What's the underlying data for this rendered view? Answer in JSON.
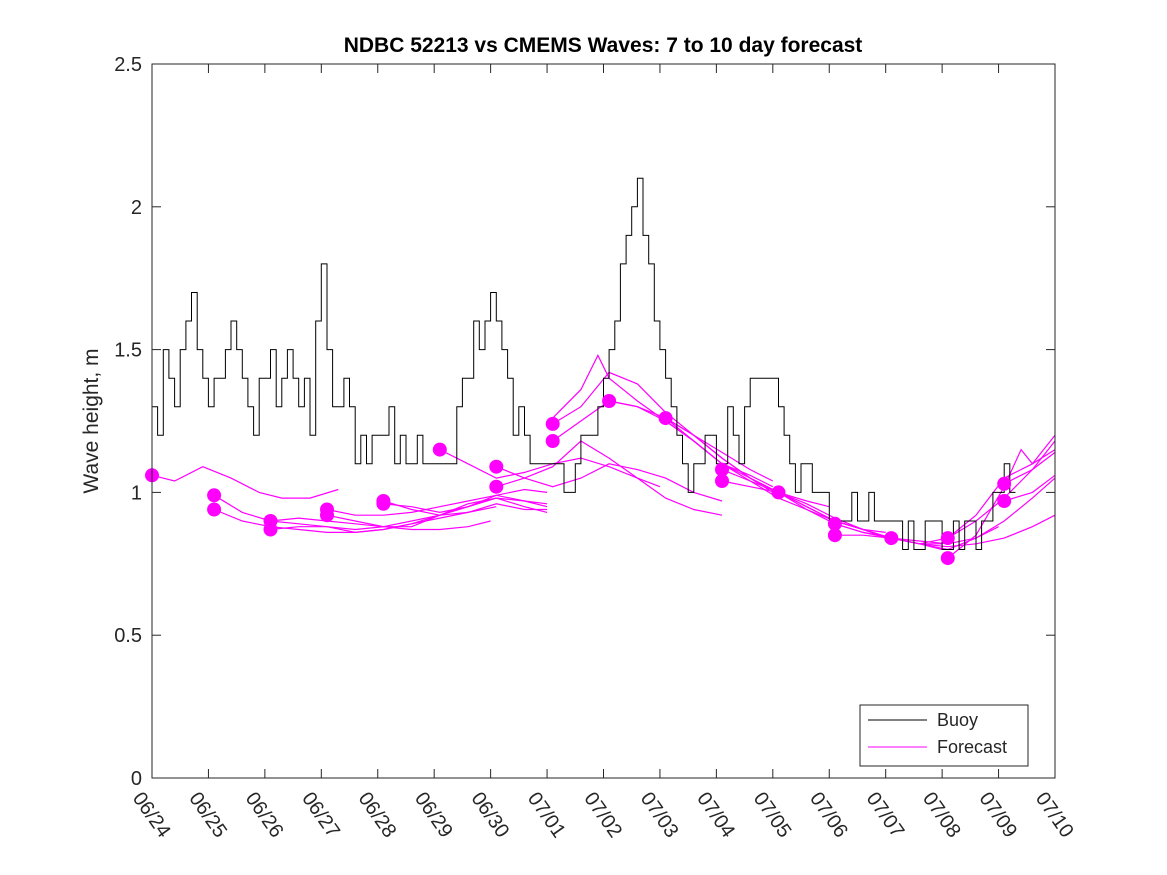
{
  "chart_data": {
    "type": "line",
    "title": "NDBC 52213 vs CMEMS Waves: 7 to 10 day forecast",
    "xlabel": "",
    "ylabel": "Wave height, m",
    "ylim": [
      0,
      2.5
    ],
    "xlim_days": [
      0,
      16
    ],
    "yticks": [
      0,
      0.5,
      1,
      1.5,
      2,
      2.5
    ],
    "ytick_labels": [
      "0",
      "0.5",
      "1",
      "1.5",
      "2",
      "2.5"
    ],
    "xtick_labels": [
      "06/24",
      "06/25",
      "06/26",
      "06/27",
      "06/28",
      "06/29",
      "06/30",
      "07/01",
      "07/02",
      "07/03",
      "07/04",
      "07/05",
      "07/06",
      "07/07",
      "07/08",
      "07/09",
      "07/10"
    ],
    "grid": false,
    "legend_position": "bottom-right",
    "colors": {
      "buoy": "#000000",
      "forecast": "#ff00ff"
    },
    "legend": [
      {
        "label": "Buoy",
        "color": "#000000"
      },
      {
        "label": "Forecast",
        "color": "#ff00ff"
      }
    ],
    "buoy": {
      "name": "Buoy",
      "x": [
        0,
        0.1,
        0.2,
        0.3,
        0.4,
        0.5,
        0.6,
        0.7,
        0.8,
        0.9,
        1.0,
        1.1,
        1.2,
        1.3,
        1.4,
        1.5,
        1.6,
        1.7,
        1.8,
        1.9,
        2.0,
        2.1,
        2.2,
        2.3,
        2.4,
        2.5,
        2.6,
        2.7,
        2.8,
        2.9,
        3.0,
        3.1,
        3.2,
        3.3,
        3.4,
        3.5,
        3.6,
        3.7,
        3.8,
        3.9,
        4.0,
        4.1,
        4.2,
        4.3,
        4.4,
        4.5,
        4.6,
        4.7,
        4.8,
        4.9,
        5.0,
        5.1,
        5.2,
        5.3,
        5.4,
        5.5,
        5.6,
        5.7,
        5.8,
        5.9,
        6.0,
        6.1,
        6.2,
        6.3,
        6.4,
        6.5,
        6.6,
        6.7,
        6.8,
        6.9,
        7.0,
        7.1,
        7.2,
        7.3,
        7.4,
        7.5,
        7.6,
        7.7,
        7.8,
        7.9,
        8.0,
        8.1,
        8.2,
        8.3,
        8.4,
        8.5,
        8.6,
        8.7,
        8.8,
        8.9,
        9.0,
        9.1,
        9.2,
        9.3,
        9.4,
        9.5,
        9.6,
        9.7,
        9.8,
        9.9,
        10.0,
        10.1,
        10.2,
        10.3,
        10.4,
        10.5,
        10.6,
        10.7,
        10.8,
        10.9,
        11.0,
        11.1,
        11.2,
        11.3,
        11.4,
        11.5,
        11.6,
        11.7,
        11.8,
        11.9,
        12.0,
        12.1,
        12.2,
        12.3,
        12.4,
        12.5,
        12.6,
        12.7,
        12.8,
        12.9,
        13.0,
        13.1,
        13.2,
        13.3,
        13.4,
        13.5,
        13.6,
        13.7,
        13.8,
        13.9,
        14.0,
        14.1,
        14.2,
        14.3,
        14.4,
        14.5,
        14.6,
        14.7,
        14.8,
        14.9,
        15.0,
        15.1,
        15.2,
        15.3
      ],
      "y": [
        1.3,
        1.2,
        1.5,
        1.4,
        1.3,
        1.5,
        1.6,
        1.7,
        1.5,
        1.4,
        1.3,
        1.4,
        1.4,
        1.5,
        1.6,
        1.5,
        1.4,
        1.3,
        1.2,
        1.4,
        1.4,
        1.5,
        1.3,
        1.4,
        1.5,
        1.4,
        1.3,
        1.4,
        1.2,
        1.6,
        1.8,
        1.5,
        1.3,
        1.3,
        1.4,
        1.3,
        1.1,
        1.2,
        1.1,
        1.2,
        1.2,
        1.2,
        1.3,
        1.1,
        1.2,
        1.1,
        1.1,
        1.2,
        1.1,
        1.1,
        1.1,
        1.1,
        1.1,
        1.1,
        1.3,
        1.4,
        1.4,
        1.6,
        1.5,
        1.6,
        1.7,
        1.6,
        1.5,
        1.4,
        1.2,
        1.3,
        1.2,
        1.1,
        1.1,
        1.1,
        1.1,
        1.1,
        1.1,
        1.0,
        1.0,
        1.1,
        1.2,
        1.2,
        1.2,
        1.3,
        1.4,
        1.5,
        1.6,
        1.8,
        1.9,
        2.0,
        2.1,
        1.9,
        1.8,
        1.6,
        1.5,
        1.4,
        1.3,
        1.2,
        1.1,
        1.0,
        1.1,
        1.1,
        1.2,
        1.2,
        1.1,
        1.1,
        1.3,
        1.2,
        1.1,
        1.3,
        1.4,
        1.4,
        1.4,
        1.4,
        1.4,
        1.3,
        1.2,
        1.1,
        1.0,
        1.1,
        1.1,
        1.0,
        1.0,
        1.0,
        0.9,
        0.9,
        0.9,
        0.9,
        1.0,
        0.9,
        0.9,
        1.0,
        0.9,
        0.9,
        0.9,
        0.9,
        0.9,
        0.8,
        0.9,
        0.8,
        0.8,
        0.9,
        0.9,
        0.9,
        0.8,
        0.8,
        0.9,
        0.8,
        0.9,
        0.9,
        0.8,
        0.9,
        0.9,
        1.0,
        1.0,
        1.1,
        1.0,
        1.0
      ]
    },
    "forecast_series": [
      {
        "x": [
          0,
          0.4,
          0.9,
          1.4,
          1.9,
          2.3,
          2.8,
          3.3
        ],
        "y": [
          1.06,
          1.04,
          1.09,
          1.05,
          1.0,
          0.98,
          0.98,
          1.01
        ]
      },
      {
        "x": [
          1.1,
          1.6,
          2.1,
          2.6,
          3.1,
          3.6,
          4.1,
          4.6,
          5.1,
          5.6,
          6.1
        ],
        "y": [
          0.99,
          0.93,
          0.9,
          0.89,
          0.88,
          0.87,
          0.88,
          0.9,
          0.92,
          0.95,
          0.98
        ]
      },
      {
        "x": [
          1.1,
          1.6,
          2.1,
          2.6,
          3.1,
          3.6,
          4.1,
          4.6,
          5.1,
          5.6,
          6.1,
          6.6,
          7.0
        ],
        "y": [
          0.94,
          0.9,
          0.88,
          0.87,
          0.86,
          0.86,
          0.87,
          0.89,
          0.92,
          0.95,
          0.98,
          0.97,
          0.96
        ]
      },
      {
        "x": [
          2.1,
          2.6,
          3.1,
          3.6,
          4.1,
          4.6,
          5.1,
          5.6,
          6.1,
          6.6,
          7.0
        ],
        "y": [
          0.9,
          0.91,
          0.9,
          0.89,
          0.88,
          0.88,
          0.92,
          0.96,
          0.98,
          0.95,
          0.93
        ]
      },
      {
        "x": [
          2.1,
          2.6,
          3.1,
          3.6,
          4.1,
          4.6,
          5.1,
          5.6,
          6.1
        ],
        "y": [
          0.87,
          0.88,
          0.88,
          0.86,
          0.87,
          0.89,
          0.91,
          0.93,
          0.95
        ]
      },
      {
        "x": [
          3.1,
          3.6,
          4.1,
          4.6,
          5.1,
          5.6,
          6.1,
          6.6,
          7.0
        ],
        "y": [
          0.94,
          0.92,
          0.92,
          0.93,
          0.95,
          0.97,
          0.99,
          0.97,
          0.95
        ]
      },
      {
        "x": [
          3.1,
          3.6,
          4.1,
          4.6,
          5.1,
          5.6,
          6.0
        ],
        "y": [
          0.92,
          0.9,
          0.88,
          0.87,
          0.87,
          0.88,
          0.9
        ]
      },
      {
        "x": [
          4.1,
          4.6,
          5.1,
          5.6,
          6.1,
          6.6,
          7.0
        ],
        "y": [
          0.97,
          0.94,
          0.92,
          0.93,
          0.96,
          0.94,
          0.94
        ]
      },
      {
        "x": [
          4.1,
          4.6,
          5.1,
          5.6,
          6.1,
          6.6,
          7.0
        ],
        "y": [
          0.96,
          0.95,
          0.93,
          0.95,
          0.99,
          1.01,
          1.0
        ]
      },
      {
        "x": [
          5.1,
          5.6,
          6.1,
          6.6,
          7.1,
          7.6,
          8.1,
          8.6,
          9.0
        ],
        "y": [
          1.15,
          1.1,
          1.05,
          1.07,
          1.1,
          1.12,
          1.09,
          1.05,
          1.02
        ]
      },
      {
        "x": [
          6.1,
          6.6,
          7.1,
          7.6,
          8.1,
          8.6,
          9.1,
          9.6,
          10.1
        ],
        "y": [
          1.09,
          1.05,
          1.02,
          1.05,
          1.1,
          1.08,
          1.05,
          1.0,
          0.97
        ]
      },
      {
        "x": [
          6.1,
          6.6,
          7.1,
          7.6,
          8.1,
          8.6,
          9.1,
          9.6,
          10.1
        ],
        "y": [
          1.02,
          1.05,
          1.09,
          1.18,
          1.12,
          1.05,
          0.98,
          0.94,
          0.92
        ]
      },
      {
        "x": [
          7.1,
          7.6,
          8.1,
          8.6,
          9.1,
          9.6,
          10.1,
          10.6,
          11.0
        ],
        "y": [
          1.24,
          1.3,
          1.42,
          1.38,
          1.28,
          1.2,
          1.12,
          1.05,
          1.0
        ]
      },
      {
        "x": [
          7.1,
          7.6,
          8.1,
          8.6,
          9.1,
          9.6,
          10.1,
          10.6,
          11.0
        ],
        "y": [
          1.18,
          1.25,
          1.32,
          1.3,
          1.26,
          1.2,
          1.14,
          1.08,
          1.04
        ]
      },
      {
        "x": [
          7.1,
          7.6,
          7.9,
          8.1,
          8.6,
          9.1,
          9.6,
          10.1,
          10.6,
          11.0
        ],
        "y": [
          1.26,
          1.36,
          1.48,
          1.4,
          1.32,
          1.25,
          1.18,
          1.1,
          1.06,
          1.02
        ]
      },
      {
        "x": [
          8.1,
          8.6,
          9.1,
          9.6,
          10.1,
          10.6,
          11.1,
          11.6,
          12.0
        ],
        "y": [
          1.32,
          1.3,
          1.25,
          1.18,
          1.1,
          1.05,
          1.0,
          0.97,
          0.95
        ]
      },
      {
        "x": [
          9.1,
          9.6,
          10.1,
          10.6,
          11.1,
          11.6,
          12.1,
          12.6,
          13.0
        ],
        "y": [
          1.26,
          1.2,
          1.12,
          1.05,
          1.0,
          0.95,
          0.9,
          0.87,
          0.86
        ]
      },
      {
        "x": [
          9.1,
          9.6,
          10.1,
          10.6,
          11.1,
          11.6,
          12.1,
          12.6,
          13.0
        ],
        "y": [
          1.26,
          1.18,
          1.1,
          1.04,
          0.98,
          0.94,
          0.9,
          0.87,
          0.84
        ]
      },
      {
        "x": [
          10.1,
          10.6,
          11.1,
          11.6,
          12.1,
          12.6,
          13.1,
          13.6,
          14.0
        ],
        "y": [
          1.08,
          1.04,
          1.0,
          0.95,
          0.9,
          0.87,
          0.84,
          0.82,
          0.8
        ]
      },
      {
        "x": [
          10.1,
          10.6,
          11.1,
          11.6,
          12.1,
          12.6,
          13.1,
          13.6,
          14.0
        ],
        "y": [
          1.04,
          1.02,
          1.0,
          0.96,
          0.91,
          0.87,
          0.84,
          0.82,
          0.82
        ]
      },
      {
        "x": [
          11.1,
          11.6,
          12.1,
          12.6,
          13.1,
          13.6,
          14.1,
          14.6,
          15.0
        ],
        "y": [
          1.0,
          0.94,
          0.89,
          0.86,
          0.84,
          0.83,
          0.82,
          0.84,
          0.88
        ]
      },
      {
        "x": [
          12.1,
          12.6,
          13.1,
          13.6,
          14.1,
          14.6,
          15.1,
          15.6,
          16.0
        ],
        "y": [
          0.89,
          0.86,
          0.84,
          0.82,
          0.81,
          0.82,
          0.84,
          0.88,
          0.92
        ]
      },
      {
        "x": [
          12.1,
          12.6,
          13.1,
          13.6,
          14.1,
          14.6,
          15.1,
          15.6,
          16.0
        ],
        "y": [
          0.85,
          0.85,
          0.84,
          0.82,
          0.8,
          0.84,
          0.9,
          0.98,
          1.05
        ]
      },
      {
        "x": [
          13.1,
          13.6,
          14.1,
          14.6,
          15.1,
          15.6,
          16.0
        ],
        "y": [
          0.84,
          0.82,
          0.84,
          0.92,
          1.05,
          1.1,
          1.15
        ]
      },
      {
        "x": [
          14.1,
          14.6,
          15.1,
          15.4,
          15.6,
          16.0
        ],
        "y": [
          0.77,
          0.85,
          1.02,
          1.15,
          1.1,
          1.2
        ]
      },
      {
        "x": [
          14.1,
          14.6,
          15.1,
          15.6,
          16.0
        ],
        "y": [
          0.84,
          0.9,
          0.98,
          1.08,
          1.14
        ]
      },
      {
        "x": [
          15.1,
          15.6,
          16.0
        ],
        "y": [
          1.03,
          1.08,
          1.18
        ]
      },
      {
        "x": [
          15.1,
          15.6,
          16.0
        ],
        "y": [
          0.97,
          1.0,
          1.06
        ]
      }
    ],
    "forecast_markers": {
      "x": [
        0,
        1.1,
        1.1,
        2.1,
        2.1,
        3.1,
        3.1,
        4.1,
        4.1,
        5.1,
        6.1,
        6.1,
        7.1,
        7.1,
        8.1,
        9.1,
        10.1,
        10.1,
        11.1,
        12.1,
        12.1,
        13.1,
        14.1,
        14.1,
        15.1,
        15.1
      ],
      "y": [
        1.06,
        0.99,
        0.94,
        0.9,
        0.87,
        0.94,
        0.92,
        0.97,
        0.96,
        1.15,
        1.09,
        1.02,
        1.24,
        1.18,
        1.32,
        1.26,
        1.08,
        1.04,
        1.0,
        0.89,
        0.85,
        0.84,
        0.84,
        0.77,
        1.03,
        0.97
      ]
    }
  }
}
